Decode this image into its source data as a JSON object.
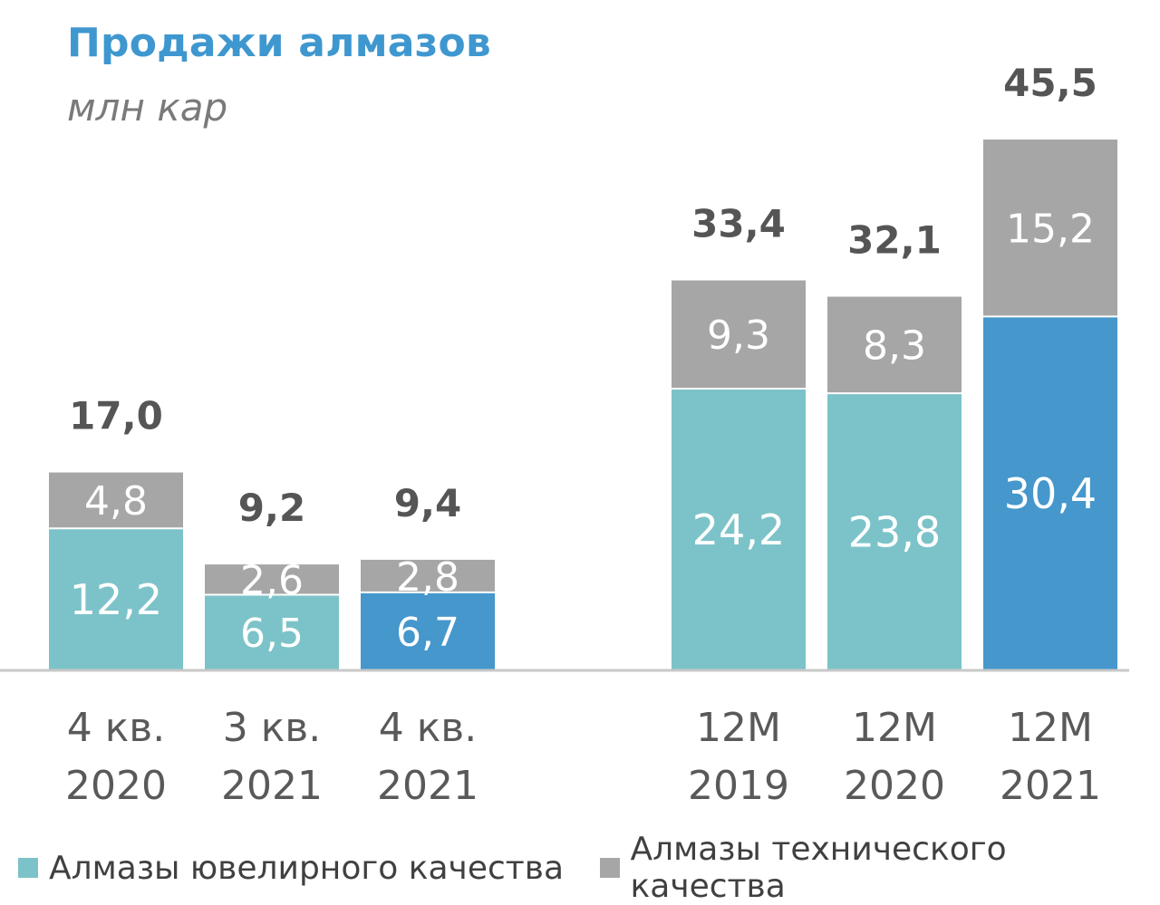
{
  "title": "Продажи алмазов",
  "subtitle": "млн кар",
  "chart_data": {
    "type": "bar",
    "stacked": true,
    "categories": [
      "4 кв. 2020",
      "3 кв. 2021",
      "4 кв. 2021",
      "12М 2019",
      "12М 2020",
      "12М 2021"
    ],
    "category_lines": [
      [
        "4 кв.",
        "2020"
      ],
      [
        "3 кв.",
        "2021"
      ],
      [
        "4 кв.",
        "2021"
      ],
      [
        "12М",
        "2019"
      ],
      [
        "12М",
        "2020"
      ],
      [
        "12М",
        "2021"
      ]
    ],
    "series": [
      {
        "name": "Алмазы ювелирного качества",
        "values": [
          12.2,
          6.5,
          6.7,
          24.2,
          23.8,
          30.4
        ],
        "labels": [
          "12,2",
          "6,5",
          "6,7",
          "24,2",
          "23,8",
          "30,4"
        ],
        "color": "#7cc3c9"
      },
      {
        "name": "Алмазы технического качества",
        "values": [
          4.8,
          2.6,
          2.8,
          9.3,
          8.3,
          15.2
        ],
        "labels": [
          "4,8",
          "2,6",
          "2,8",
          "9,3",
          "8,3",
          "15,2"
        ],
        "color": "#a6a6a6"
      }
    ],
    "totals": [
      17.0,
      9.2,
      9.4,
      33.4,
      32.1,
      45.5
    ],
    "total_labels": [
      "17,0",
      "9,2",
      "9,4",
      "33,4",
      "32,1",
      "45,5"
    ],
    "highlight_color": "#4597cc",
    "highlight_categories": [
      2,
      5
    ],
    "legend_position": "bottom",
    "grid": false
  }
}
